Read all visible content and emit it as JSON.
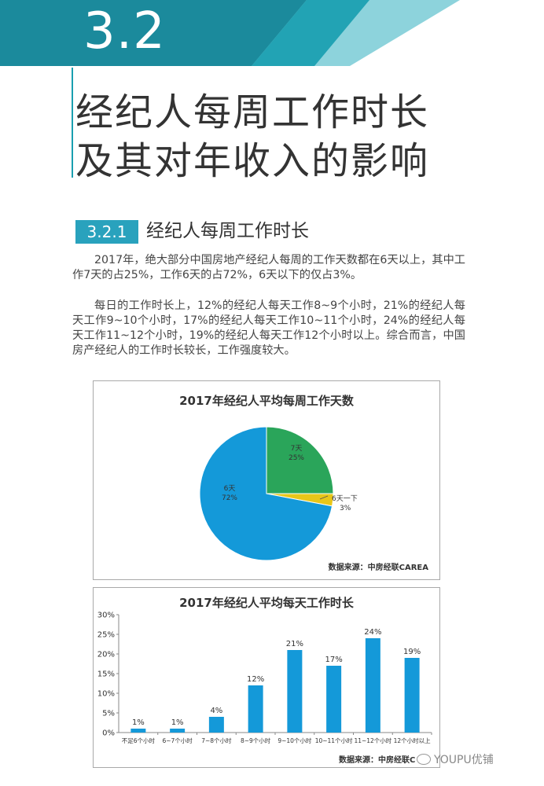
{
  "header": {
    "section_number": "3.2",
    "title_line1": "经纪人每周工作时长",
    "title_line2": "及其对年收入的影响",
    "colors": {
      "band": "#1b8a9c",
      "band_light": "#8dd3dc",
      "accent": "#29a2bd"
    }
  },
  "subsection": {
    "number": "3.2.1",
    "title": "经纪人每周工作时长"
  },
  "paragraphs": [
    "2017年，绝大部分中国房地产经纪人每周的工作天数都在6天以上，其中工作7天的占25%，工作6天的占72%，6天以下的仅占3%。",
    "每日的工作时长上，12%的经纪人每天工作8~9个小时，21%的经纪人每天工作9~10个小时，17%的经纪人每天工作10~11个小时，24%的经纪人每天工作11~12个小时，19%的经纪人每天工作12个小时以上。综合而言，中国房产经纪人的工作时长较长，工作强度较大。"
  ],
  "chart_data": [
    {
      "type": "pie",
      "title": "2017年经纪人平均每周工作天数",
      "source": "数据来源：中房经联CAREA",
      "slices": [
        {
          "name": "7天",
          "value": 25,
          "label": "25%",
          "color": "#2aa55a"
        },
        {
          "name": "6天一下",
          "value": 3,
          "label": "3%",
          "color": "#e8c619"
        },
        {
          "name": "6天",
          "value": 72,
          "label": "72%",
          "color": "#1499d9"
        }
      ]
    },
    {
      "type": "bar",
      "title": "2017年经纪人平均每天工作时长",
      "source": "数据来源：中房经联C",
      "categories": [
        "不足6个小时",
        "6~7个小时",
        "7~8个小时",
        "8~9个小时",
        "9~10个小时",
        "10~11个小时",
        "11~12个小时",
        "12个小时以上"
      ],
      "values": [
        1,
        1,
        4,
        12,
        21,
        17,
        24,
        19
      ],
      "value_labels": [
        "1%",
        "1%",
        "4%",
        "12%",
        "21%",
        "17%",
        "24%",
        "19%"
      ],
      "y_ticks": [
        "0%",
        "5%",
        "10%",
        "15%",
        "20%",
        "25%",
        "30%"
      ],
      "ylim": [
        0,
        30
      ],
      "grid": false,
      "color": "#1499d9"
    }
  ],
  "watermark": "YOUPU优铺"
}
